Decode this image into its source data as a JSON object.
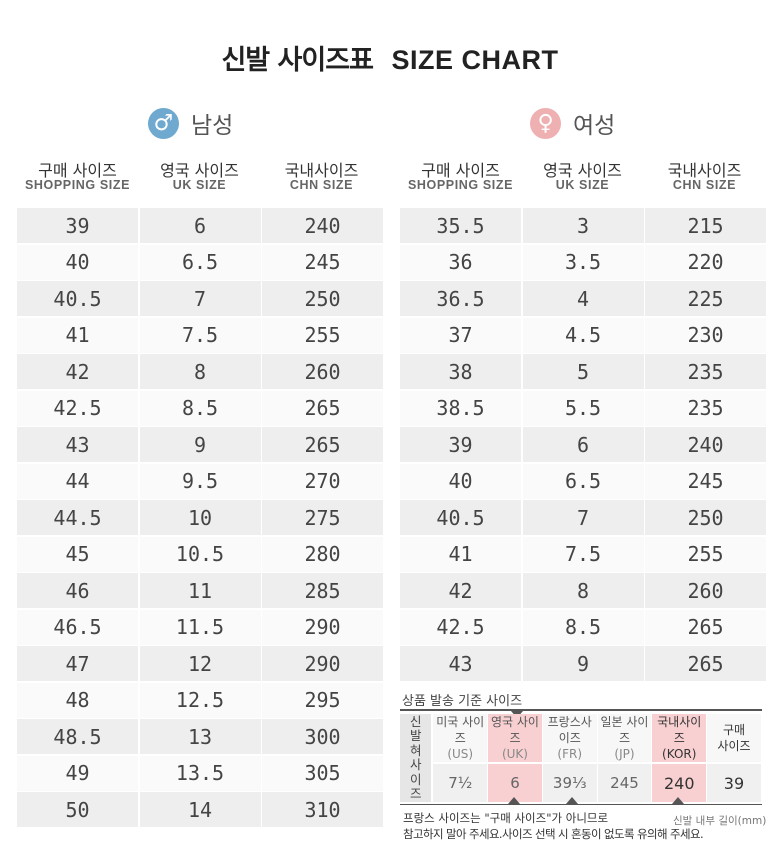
{
  "title": {
    "ko": "신발 사이즈표",
    "en": "SIZE CHART"
  },
  "male": {
    "symbol": "♂",
    "label": "남성"
  },
  "female": {
    "symbol": "♀",
    "label": "여성"
  },
  "columns": [
    {
      "ko": "구매 사이즈",
      "en": "SHOPPING SIZE"
    },
    {
      "ko": "영국 사이즈",
      "en": "UK SIZE"
    },
    {
      "ko": "국내사이즈",
      "en": "CHN SIZE"
    }
  ],
  "male_rows": [
    [
      "39",
      "6",
      "240"
    ],
    [
      "40",
      "6.5",
      "245"
    ],
    [
      "40.5",
      "7",
      "250"
    ],
    [
      "41",
      "7.5",
      "255"
    ],
    [
      "42",
      "8",
      "260"
    ],
    [
      "42.5",
      "8.5",
      "265"
    ],
    [
      "43",
      "9",
      "265"
    ],
    [
      "44",
      "9.5",
      "270"
    ],
    [
      "44.5",
      "10",
      "275"
    ],
    [
      "45",
      "10.5",
      "280"
    ],
    [
      "46",
      "11",
      "285"
    ],
    [
      "46.5",
      "11.5",
      "290"
    ],
    [
      "47",
      "12",
      "290"
    ],
    [
      "48",
      "12.5",
      "295"
    ],
    [
      "48.5",
      "13",
      "300"
    ],
    [
      "49",
      "13.5",
      "305"
    ],
    [
      "50",
      "14",
      "310"
    ]
  ],
  "female_rows": [
    [
      "35.5",
      "3",
      "215"
    ],
    [
      "36",
      "3.5",
      "220"
    ],
    [
      "36.5",
      "4",
      "225"
    ],
    [
      "37",
      "4.5",
      "230"
    ],
    [
      "38",
      "5",
      "235"
    ],
    [
      "38.5",
      "5.5",
      "235"
    ],
    [
      "39",
      "6",
      "240"
    ],
    [
      "40",
      "6.5",
      "245"
    ],
    [
      "40.5",
      "7",
      "250"
    ],
    [
      "41",
      "7.5",
      "255"
    ],
    [
      "42",
      "8",
      "260"
    ],
    [
      "42.5",
      "8.5",
      "265"
    ],
    [
      "43",
      "9",
      "265"
    ]
  ],
  "example": {
    "title": "상품 발송 기준 사이즈",
    "side_label": [
      "신",
      "발",
      "혀",
      "사",
      "이",
      "즈"
    ],
    "cols": [
      {
        "h1": "미국 사이즈",
        "h2": "(US)",
        "value": "7½"
      },
      {
        "h1": "영국 사이즈",
        "h2": "(UK)",
        "value": "6"
      },
      {
        "h1": "프랑스사이즈",
        "h2": "(FR)",
        "value": "39⅓"
      },
      {
        "h1": "일본 사이즈",
        "h2": "(JP)",
        "value": "245"
      },
      {
        "h1": "국내사이즈",
        "h2": "(KOR)",
        "value": "240"
      },
      {
        "h1": "구매",
        "h2": "사이즈",
        "value": "39"
      }
    ],
    "note1": "프랑스 사이즈는 \"구매 사이즈\"가 아니므로",
    "note2": "참고하지 말아 주세요.사이즈 선택 시 혼동이 없도록 유의해 주세요.",
    "note3": "신발 내부 길이(mm)"
  },
  "colors": {
    "male_accent": "#6fa9cf",
    "female_accent": "#efb0b2",
    "highlight": "#f8d0d2"
  }
}
